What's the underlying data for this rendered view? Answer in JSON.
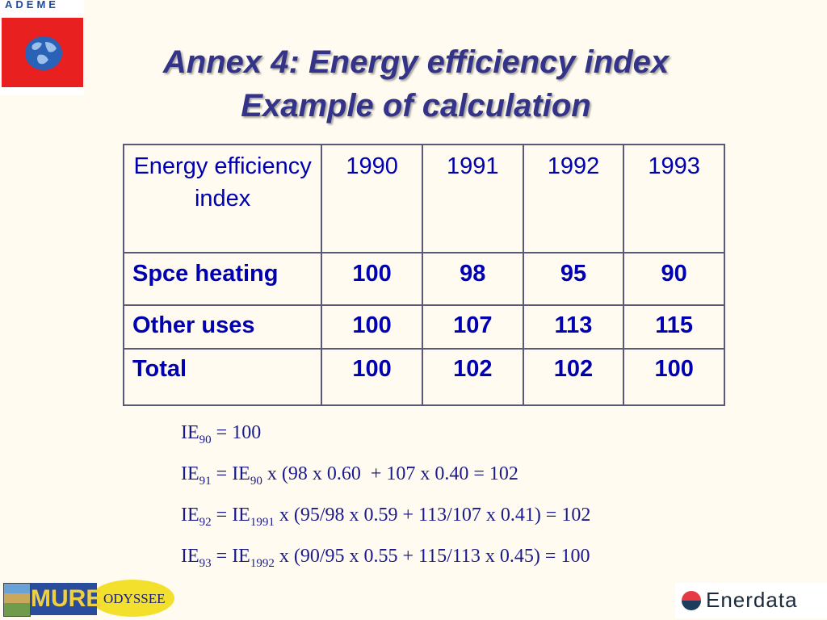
{
  "logos": {
    "ademe": "ADEME",
    "mure": "MURE",
    "odyssee": "ODYSSEE",
    "enerdata": "Enerdata"
  },
  "title": {
    "line1": "Annex 4: Energy efficiency index",
    "line2": "Example of calculation"
  },
  "table": {
    "header": [
      "Energy efficiency index",
      "1990",
      "1991",
      "1992",
      "1993"
    ],
    "rows": [
      {
        "label": "Spce heating",
        "values": [
          "100",
          "98",
          "95",
          "90"
        ]
      },
      {
        "label": "Other uses",
        "values": [
          "100",
          "107",
          "113",
          "115"
        ]
      },
      {
        "label": "Total",
        "values": [
          "100",
          "102",
          "102",
          "100"
        ]
      }
    ]
  },
  "formulas": [
    {
      "lhs": "IE",
      "lhs_sub": "90",
      "rest": " = 100"
    },
    {
      "lhs": "IE",
      "lhs_sub": "91",
      "mid": " = IE",
      "mid_sub": "90",
      "rest": " x (98 x 0.60  + 107 x 0.40 = 102"
    },
    {
      "lhs": "IE",
      "lhs_sub": "92",
      "mid": " = IE",
      "mid_sub": "1991",
      "rest": " x (95/98 x 0.59 + 113/107 x 0.41) = 102"
    },
    {
      "lhs": "IE",
      "lhs_sub": "93",
      "mid": " = IE",
      "mid_sub": "1992",
      "rest": " x (90/95 x 0.55 + 115/113 x 0.45) = 100"
    }
  ],
  "colors": {
    "background": "#fffbf0",
    "title": "#33338a",
    "table_text": "#0000b0",
    "ademe_red": "#e82020"
  }
}
